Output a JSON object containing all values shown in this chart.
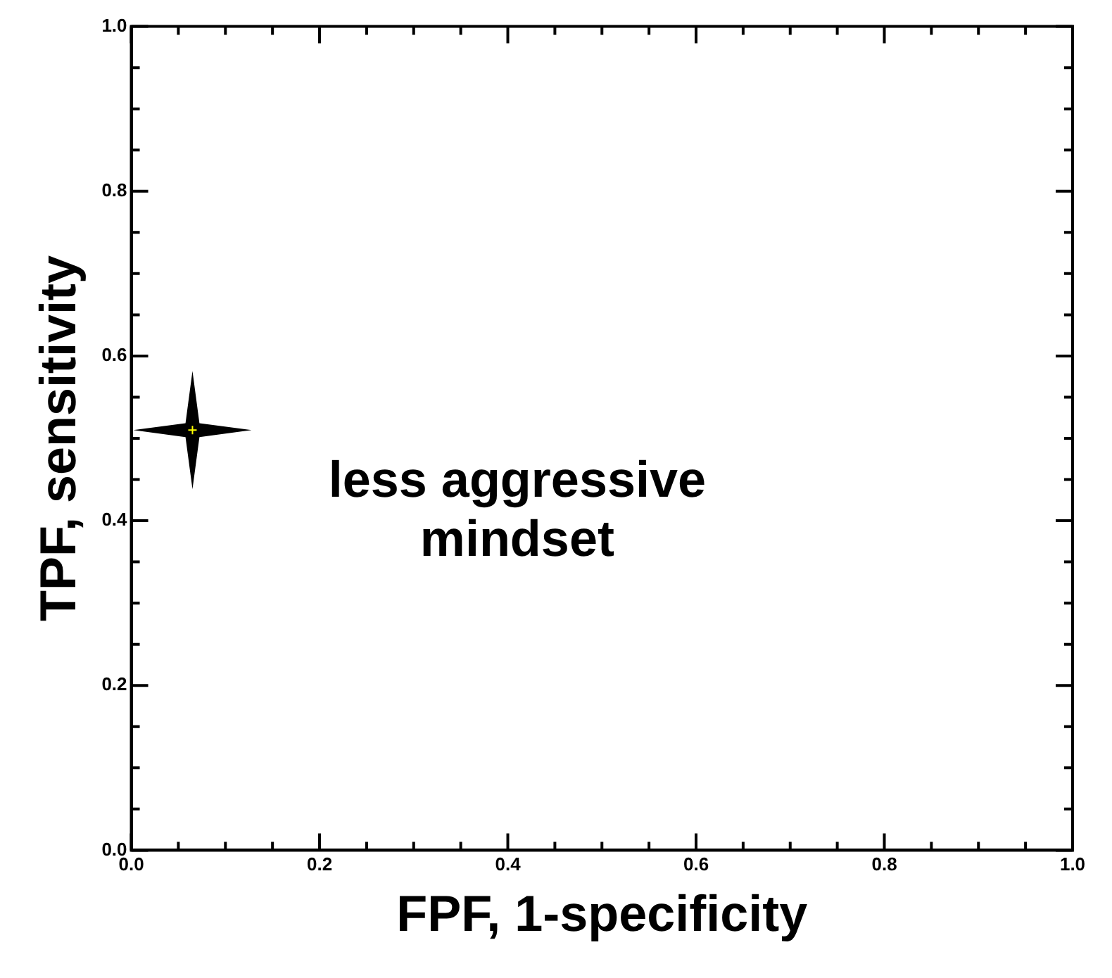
{
  "chart_data": {
    "type": "scatter",
    "xlabel": "FPF, 1-specificity",
    "ylabel": "TPF, sensitivity",
    "x": [
      0.065
    ],
    "values": [
      0.51
    ],
    "color": "#000000",
    "marker": "star",
    "xlim": [
      0,
      1
    ],
    "ylim": [
      0,
      1
    ],
    "xticks": [
      {
        "value": 0,
        "label": "0.0"
      },
      0.2,
      0.4,
      0.6,
      0.8,
      {
        "value": 1,
        "label": "1.0"
      }
    ],
    "yticks": [
      {
        "value": 0,
        "label": "0.0"
      },
      0.2,
      0.4,
      0.6,
      0.8,
      {
        "value": 1,
        "label": "1.0"
      }
    ],
    "annotations": [
      "less aggressive\nmindset"
    ],
    "grid": false,
    "legend": false
  }
}
